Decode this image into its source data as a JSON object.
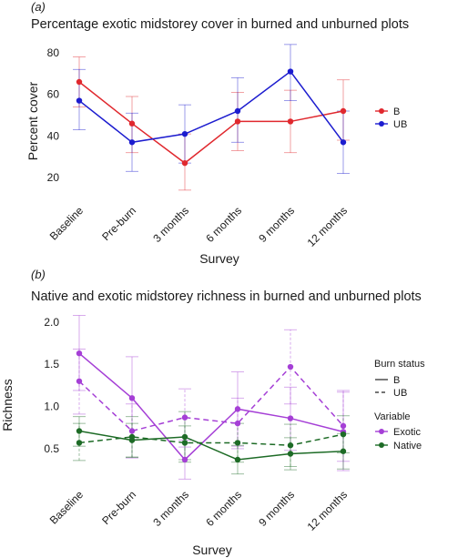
{
  "chart_data": [
    {
      "type": "line",
      "panel_label": "(a)",
      "title": "Percentage exotic midstorey cover in burned and unburned plots",
      "xlabel": "Survey",
      "ylabel": "Percent cover",
      "categories": [
        "Baseline",
        "Pre-burn",
        "3 months",
        "6 months",
        "9 months",
        "12 months"
      ],
      "ylim": [
        10,
        87
      ],
      "yticks": [
        20,
        40,
        60,
        80
      ],
      "grid": false,
      "legend_position": "right",
      "legend_title": "",
      "series": [
        {
          "name": "B",
          "color": "#e0282e",
          "dash": "solid",
          "values": [
            66,
            46,
            27,
            47,
            47,
            52
          ],
          "error_low": [
            54,
            32,
            14,
            33,
            32,
            38
          ],
          "error_high": [
            78,
            59,
            41,
            61,
            62,
            67
          ]
        },
        {
          "name": "UB",
          "color": "#1c1ccf",
          "dash": "solid",
          "values": [
            57,
            37,
            41,
            52,
            71,
            37
          ],
          "error_low": [
            43,
            23,
            27,
            37,
            57,
            22
          ],
          "error_high": [
            72,
            51,
            55,
            68,
            84,
            52
          ]
        }
      ]
    },
    {
      "type": "line",
      "panel_label": "(b)",
      "title": "Native and exotic midstorey richness in burned and unburned plots",
      "xlabel": "Survey",
      "ylabel": "Richness",
      "categories": [
        "Baseline",
        "Pre-burn",
        "3 months",
        "6 months",
        "9 months",
        "12 months"
      ],
      "ylim": [
        0.1,
        2.15
      ],
      "yticks": [
        0.5,
        1.0,
        1.5,
        2.0
      ],
      "ytick_labels": [
        "0.5",
        "1.0",
        "1.5",
        "2.0"
      ],
      "grid": false,
      "legend_position": "right",
      "legend_linetype_title": "Burn status",
      "legend_linetype_entries": [
        "B",
        "UB"
      ],
      "legend_color_title": "Variable",
      "legend_color_entries": [
        "Exotic",
        "Native"
      ],
      "series": [
        {
          "name": "Exotic B",
          "color": "#a53fd6",
          "dash": "solid",
          "values": [
            1.63,
            1.1,
            0.37,
            0.97,
            0.86,
            0.7
          ],
          "error_low": [
            1.19,
            0.61,
            0.14,
            0.53,
            0.48,
            0.24
          ],
          "error_high": [
            2.08,
            1.59,
            0.6,
            1.41,
            1.23,
            1.17
          ]
        },
        {
          "name": "Exotic UB",
          "color": "#a53fd6",
          "dash": "dashed",
          "values": [
            1.3,
            0.71,
            0.87,
            0.8,
            1.47,
            0.77
          ],
          "error_low": [
            0.91,
            0.39,
            0.52,
            0.5,
            1.03,
            0.35
          ],
          "error_high": [
            1.68,
            1.03,
            1.21,
            1.1,
            1.91,
            1.19
          ]
        },
        {
          "name": "Native B",
          "color": "#1d6b26",
          "dash": "solid",
          "values": [
            0.71,
            0.6,
            0.64,
            0.37,
            0.44,
            0.47
          ],
          "error_low": [
            0.53,
            0.4,
            0.34,
            0.2,
            0.25,
            0.26
          ],
          "error_high": [
            0.88,
            0.8,
            0.94,
            0.54,
            0.63,
            0.68
          ]
        },
        {
          "name": "Native UB",
          "color": "#1d6b26",
          "dash": "dashed",
          "values": [
            0.57,
            0.64,
            0.57,
            0.57,
            0.54,
            0.67
          ],
          "error_low": [
            0.36,
            0.4,
            0.37,
            0.34,
            0.29,
            0.45
          ],
          "error_high": [
            0.8,
            0.88,
            0.77,
            0.8,
            0.79,
            0.89
          ]
        }
      ]
    }
  ]
}
